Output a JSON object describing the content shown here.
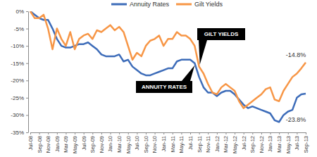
{
  "chart_data": {
    "type": "line",
    "categories": [
      "Jul-08",
      null,
      "Sep-08",
      null,
      "Nov-08",
      null,
      "Jan-09",
      null,
      "Mar-09",
      null,
      "May-09",
      null,
      "Jul-09",
      null,
      "Sep-09",
      null,
      "Nov-09",
      null,
      "Jan-10",
      null,
      "Mar-10",
      null,
      "May-10",
      null,
      "Jul-10",
      null,
      "Sep-10",
      null,
      "Nov-10",
      null,
      "Jan-11",
      null,
      "Mar-11",
      null,
      "May-11",
      null,
      "Jul-11",
      null,
      "Sep-11",
      null,
      "Nov-11",
      null,
      "Jan-12",
      null,
      "Mar-12",
      null,
      "May-12",
      null,
      "Jul-12",
      null,
      "Sep-12",
      null,
      "Nov-12",
      null,
      "Jan-13",
      null,
      "Mar-13",
      null,
      "May-13",
      null,
      "Jul-13",
      null,
      "Sep-13"
    ],
    "series": [
      {
        "name": "Annuity Rates",
        "color": "#3d6cb9",
        "values": [
          0,
          -1,
          -2,
          -2.5,
          -2.5,
          -5,
          -8,
          -10,
          -10.5,
          -10.5,
          -10,
          -9.5,
          -9.5,
          -9,
          -10,
          -11,
          -12.5,
          -13,
          -13,
          -13,
          -12.5,
          -14.5,
          -14,
          -16,
          -17,
          -18,
          -18.5,
          -18.5,
          -18,
          -17.5,
          -17,
          -16.5,
          -16.5,
          -14.5,
          -14,
          -14,
          -14,
          -15,
          -19,
          -22,
          -23.5,
          -23.5,
          -24.5,
          -23.5,
          -23,
          -23,
          -24,
          -25.5,
          -27,
          -28,
          -27.5,
          -28,
          -28.5,
          -29,
          -29.5,
          -31.5,
          -32,
          -30,
          -29,
          -28.5,
          -25,
          -24,
          -23.8
        ]
      },
      {
        "name": "Gilt Yields",
        "color": "#f79646",
        "values": [
          0,
          -2,
          -2,
          -1,
          -5,
          -11,
          -5,
          -8,
          -10,
          -6,
          -11,
          -8,
          -7,
          -6.5,
          -8,
          -5.5,
          -6,
          -5,
          -4,
          -5.5,
          -4.5,
          -6,
          -10,
          -14,
          -12,
          -13,
          -10,
          -8.5,
          -8,
          -7,
          -10,
          -8,
          -8,
          -6,
          -7,
          -7,
          -8,
          -10,
          -16,
          -18,
          -21,
          -23.5,
          -24,
          -22,
          -21,
          -22,
          -23,
          -26,
          -28,
          -27,
          -26,
          -25,
          -24,
          -22.5,
          -22,
          -25.5,
          -26,
          -23,
          -21,
          -19,
          -18,
          -16.5,
          -14.8
        ]
      }
    ],
    "ylim": [
      -35,
      0
    ],
    "yticks": [
      {
        "value": 0,
        "label": "0%"
      },
      {
        "value": -5,
        "label": "-5%"
      },
      {
        "value": -10,
        "label": "-10%"
      },
      {
        "value": -15,
        "label": "-15%"
      },
      {
        "value": -20,
        "label": "-20%"
      },
      {
        "value": -25,
        "label": "-25%"
      },
      {
        "value": -30,
        "label": "-30%"
      },
      {
        "value": -35,
        "label": "-35%"
      }
    ],
    "annotations": [
      "GILT YIELDS",
      "ANNUITY RATES",
      "-14.8%",
      "-23.8%"
    ],
    "grid": false,
    "legend": "top"
  }
}
